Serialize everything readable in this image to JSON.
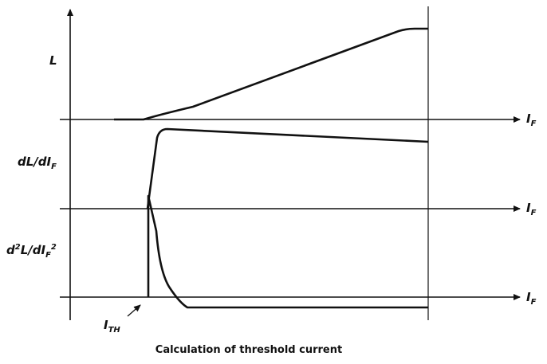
{
  "caption": "Calculation of threshold current",
  "labels": {
    "L": "L",
    "dL_dIF": "dL/dI_F",
    "d2L_dIF2": "d²L/dI_F²",
    "IF": "I_F",
    "ITH": "I_TH"
  },
  "colors": {
    "stroke": "#111111"
  }
}
